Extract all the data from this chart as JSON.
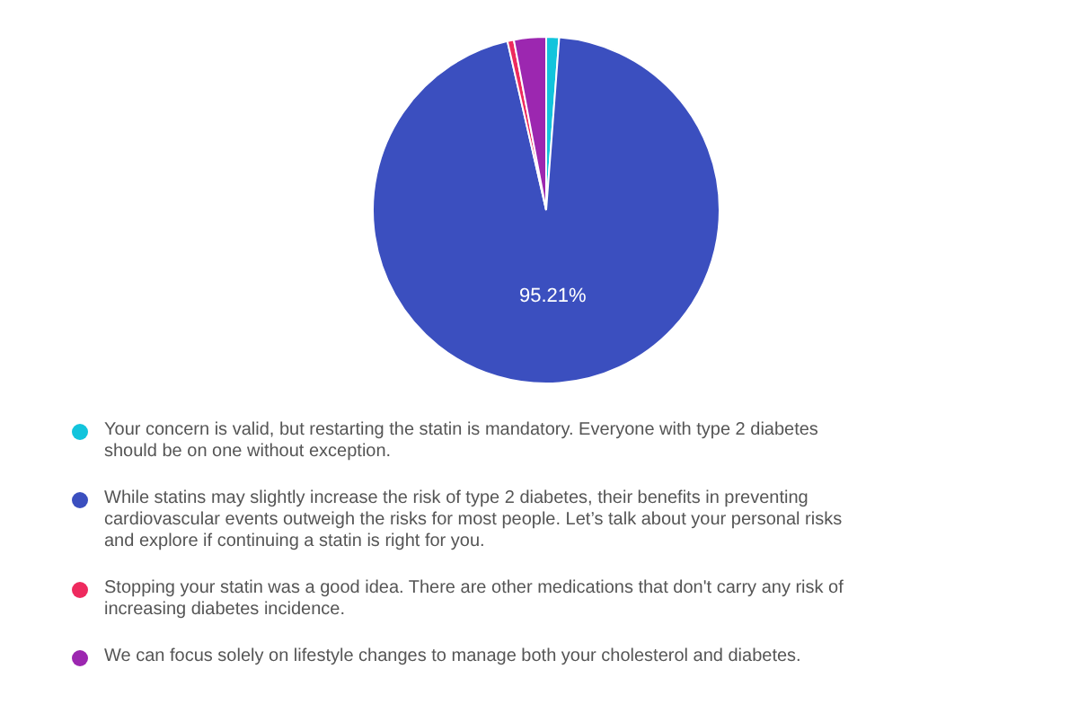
{
  "chart_data": {
    "type": "pie",
    "categories": [
      "Your concern is valid, but restarting the statin is mandatory. Everyone with type 2 diabetes should be on one without exception.",
      "While statins may slightly increase the risk of type 2 diabetes, their benefits in preventing cardiovascular events outweigh the risks for most people. Let’s talk about your personal risks and explore if continuing a statin is right for you.",
      "Stopping your statin was a good idea. There are other medications that don't carry any risk of increasing diabetes incidence.",
      "We can focus solely on lifestyle changes to manage both your cholesterol and diabetes."
    ],
    "values": [
      1.2,
      95.21,
      0.6,
      2.99
    ],
    "value_labels": [
      null,
      "95.21%",
      null,
      null
    ],
    "colors": [
      "#12c4dc",
      "#3b4fbf",
      "#ee2a5e",
      "#9c27b0"
    ],
    "legend": "bottom"
  }
}
